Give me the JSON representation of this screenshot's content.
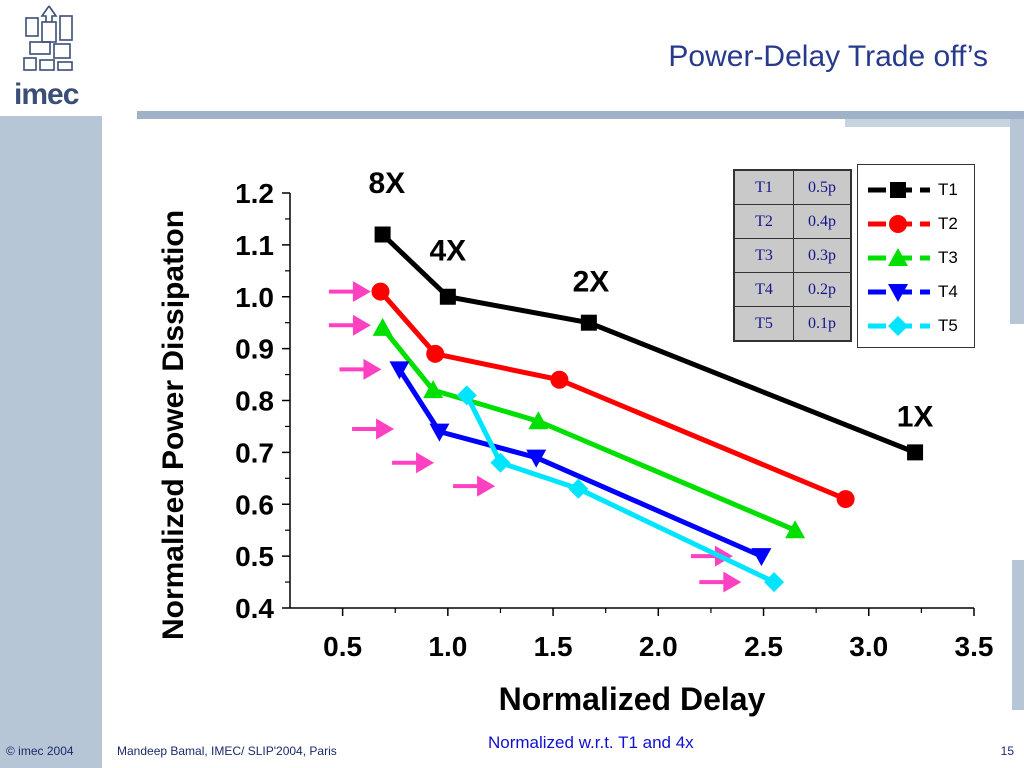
{
  "slide": {
    "title": "Power-Delay Trade off’s",
    "logo_text": "imec",
    "note": "Normalized w.r.t. T1 and 4x",
    "footer_left": "© imec 2004",
    "footer_mid": "Mandeep Bamal, IMEC/ SLIP'2004, Paris",
    "page_number": "15"
  },
  "param_table": [
    {
      "name": "T1",
      "value": "0.5p"
    },
    {
      "name": "T2",
      "value": "0.4p"
    },
    {
      "name": "T3",
      "value": "0.3p"
    },
    {
      "name": "T4",
      "value": "0.2p"
    },
    {
      "name": "T5",
      "value": "0.1p"
    }
  ],
  "chart_data": {
    "type": "line",
    "title": "",
    "xlabel": "Normalized Delay",
    "ylabel": "Normalized Power Dissipation",
    "xlim": [
      0.25,
      3.5
    ],
    "ylim": [
      0.4,
      1.2
    ],
    "xticks": [
      0.5,
      1.0,
      1.5,
      2.0,
      2.5,
      3.0,
      3.5
    ],
    "xtick_labels": [
      "0.5",
      "1.0",
      "1.5",
      "2.0",
      "2.5",
      "3.0",
      "3.5"
    ],
    "yticks": [
      0.4,
      0.5,
      0.6,
      0.7,
      0.8,
      0.9,
      1.0,
      1.1,
      1.2
    ],
    "ytick_labels": [
      "0.4",
      "0.5",
      "0.6",
      "0.7",
      "0.8",
      "0.9",
      "1.0",
      "1.1",
      "1.2"
    ],
    "grid": false,
    "legend_position": "top-right",
    "series": [
      {
        "name": "T1",
        "color": "#000000",
        "marker": "square",
        "x": [
          0.69,
          1.0,
          1.67,
          3.22
        ],
        "y": [
          1.12,
          1.0,
          0.95,
          0.7
        ]
      },
      {
        "name": "T2",
        "color": "#ff0000",
        "marker": "circle",
        "x": [
          0.68,
          0.94,
          1.53,
          2.89
        ],
        "y": [
          1.01,
          0.89,
          0.84,
          0.61
        ]
      },
      {
        "name": "T3",
        "color": "#00e000",
        "marker": "triangle-up",
        "x": [
          0.69,
          0.93,
          1.43,
          2.65
        ],
        "y": [
          0.94,
          0.82,
          0.76,
          0.55
        ]
      },
      {
        "name": "T4",
        "color": "#0000ff",
        "marker": "triangle-down",
        "x": [
          0.77,
          0.96,
          1.42,
          2.49
        ],
        "y": [
          0.86,
          0.74,
          0.69,
          0.5
        ]
      },
      {
        "name": "T5",
        "color": "#00e5ff",
        "marker": "diamond",
        "x": [
          1.09,
          1.25,
          1.62,
          2.55
        ],
        "y": [
          0.81,
          0.68,
          0.63,
          0.45
        ]
      }
    ],
    "annotations": [
      {
        "text": "8X",
        "x": 0.71,
        "y": 1.2
      },
      {
        "text": "4X",
        "x": 1.0,
        "y": 1.07
      },
      {
        "text": "2X",
        "x": 1.68,
        "y": 1.01
      },
      {
        "text": "1X",
        "x": 3.22,
        "y": 0.75
      }
    ],
    "arrows": [
      {
        "x": 0.53,
        "y": 1.01
      },
      {
        "x": 0.53,
        "y": 0.945
      },
      {
        "x": 0.58,
        "y": 0.86
      },
      {
        "x": 0.64,
        "y": 0.745
      },
      {
        "x": 0.83,
        "y": 0.68
      },
      {
        "x": 1.12,
        "y": 0.635
      },
      {
        "x": 2.25,
        "y": 0.5
      },
      {
        "x": 2.29,
        "y": 0.45
      }
    ],
    "arrow_color": "#ff40c0"
  }
}
